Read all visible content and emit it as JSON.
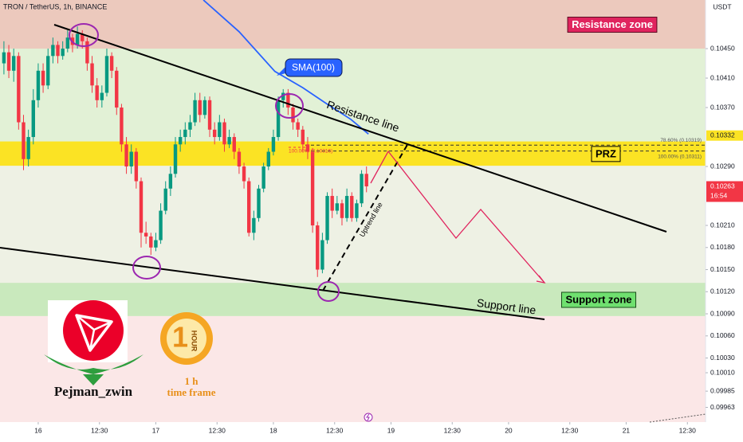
{
  "chart_data": {
    "type": "candlestick",
    "title": "TRON / TetherUS, 1h, BINANCE",
    "y_unit": "USDT",
    "xlim": [
      -7.8,
      136.2
    ],
    "xticks": [
      {
        "value": 0,
        "label": "16"
      },
      {
        "value": 12.5,
        "label": "12:30"
      },
      {
        "value": 24,
        "label": "17"
      },
      {
        "value": 36.5,
        "label": "12:30"
      },
      {
        "value": 48,
        "label": "18"
      },
      {
        "value": 60.5,
        "label": "12:30"
      },
      {
        "value": 72,
        "label": "19"
      },
      {
        "value": 84.5,
        "label": "12:30"
      },
      {
        "value": 96,
        "label": "20"
      },
      {
        "value": 108.5,
        "label": "12:30"
      },
      {
        "value": 120,
        "label": "21"
      },
      {
        "value": 132.5,
        "label": "12:30"
      }
    ],
    "ylim": [
      0.09943,
      0.10516
    ],
    "yticks": [
      {
        "value": 0.1045,
        "label": "0.10450"
      },
      {
        "value": 0.1041,
        "label": "0.10410"
      },
      {
        "value": 0.1037,
        "label": "0.10370"
      },
      {
        "value": 0.1029,
        "label": "0.10290"
      },
      {
        "value": 0.1021,
        "label": "0.10210"
      },
      {
        "value": 0.1018,
        "label": "0.10180"
      },
      {
        "value": 0.1015,
        "label": "0.10150"
      },
      {
        "value": 0.1012,
        "label": "0.10120"
      },
      {
        "value": 0.1009,
        "label": "0.10090"
      },
      {
        "value": 0.1006,
        "label": "0.10060"
      },
      {
        "value": 0.1003,
        "label": "0.10030"
      },
      {
        "value": 0.1001,
        "label": "0.10010"
      },
      0.09985,
      0.09963
    ],
    "series": [
      {
        "type": "candlestick",
        "up_color": "#089981",
        "down_color": "#f23645",
        "x": [
          -7,
          -6,
          -5,
          -4,
          -3,
          -2,
          -1,
          0,
          1,
          2,
          3,
          4,
          5,
          6,
          7,
          8,
          9,
          10,
          11,
          12,
          13,
          14,
          15,
          16,
          17,
          18,
          19,
          20,
          21,
          22,
          23,
          24,
          25,
          26,
          27,
          28,
          29,
          30,
          31,
          32,
          33,
          34,
          35,
          36,
          37,
          38,
          39,
          40,
          41,
          42,
          43,
          44,
          45,
          46,
          47,
          48,
          49,
          50,
          51,
          52,
          53,
          54,
          55,
          56,
          57,
          58,
          59,
          60,
          61,
          62,
          63,
          64,
          65,
          66,
          67
        ],
        "ohlc": [
          [
            0.1043,
            0.1046,
            0.10415,
            0.10445
          ],
          [
            0.10445,
            0.10455,
            0.1041,
            0.1042
          ],
          [
            0.1042,
            0.1045,
            0.10405,
            0.1044
          ],
          [
            0.1044,
            0.10445,
            0.1034,
            0.1035
          ],
          [
            0.1035,
            0.1036,
            0.10285,
            0.103
          ],
          [
            0.103,
            0.1034,
            0.1029,
            0.1033
          ],
          [
            0.1033,
            0.10395,
            0.1032,
            0.1038
          ],
          [
            0.1038,
            0.1043,
            0.1037,
            0.1042
          ],
          [
            0.1042,
            0.1043,
            0.1039,
            0.104
          ],
          [
            0.104,
            0.1045,
            0.10395,
            0.1044
          ],
          [
            0.1044,
            0.10465,
            0.1043,
            0.10455
          ],
          [
            0.10455,
            0.1046,
            0.1043,
            0.1044
          ],
          [
            0.1044,
            0.1046,
            0.10435,
            0.1045
          ],
          [
            0.1045,
            0.10475,
            0.10445,
            0.10465
          ],
          [
            0.10465,
            0.1047,
            0.10445,
            0.10455
          ],
          [
            0.10455,
            0.1048,
            0.1045,
            0.1047
          ],
          [
            0.1047,
            0.10475,
            0.1045,
            0.1046
          ],
          [
            0.1046,
            0.10465,
            0.1042,
            0.1043
          ],
          [
            0.1043,
            0.1044,
            0.1039,
            0.104
          ],
          [
            0.104,
            0.1041,
            0.1037,
            0.1038
          ],
          [
            0.1038,
            0.104,
            0.1037,
            0.1039
          ],
          [
            0.1039,
            0.1045,
            0.10385,
            0.1044
          ],
          [
            0.1044,
            0.10445,
            0.1041,
            0.1042
          ],
          [
            0.1042,
            0.10425,
            0.1036,
            0.1037
          ],
          [
            0.1037,
            0.10375,
            0.1031,
            0.1032
          ],
          [
            0.1032,
            0.1033,
            0.1028,
            0.1029
          ],
          [
            0.1029,
            0.1032,
            0.1028,
            0.1031
          ],
          [
            0.1031,
            0.10315,
            0.1026,
            0.1027
          ],
          [
            0.1027,
            0.10275,
            0.1018,
            0.102
          ],
          [
            0.102,
            0.10215,
            0.10185,
            0.10195
          ],
          [
            0.10195,
            0.102,
            0.1017,
            0.1018
          ],
          [
            0.1018,
            0.102,
            0.10175,
            0.1019
          ],
          [
            0.1019,
            0.1024,
            0.10185,
            0.1023
          ],
          [
            0.1023,
            0.1027,
            0.10225,
            0.1026
          ],
          [
            0.1026,
            0.1029,
            0.1025,
            0.1028
          ],
          [
            0.1028,
            0.1033,
            0.10275,
            0.1032
          ],
          [
            0.1032,
            0.1034,
            0.1031,
            0.1033
          ],
          [
            0.1033,
            0.1035,
            0.1032,
            0.1034
          ],
          [
            0.1034,
            0.1036,
            0.1033,
            0.1035
          ],
          [
            0.1035,
            0.1039,
            0.10345,
            0.1038
          ],
          [
            0.1038,
            0.1039,
            0.1035,
            0.1036
          ],
          [
            0.1036,
            0.10385,
            0.10355,
            0.1038
          ],
          [
            0.1038,
            0.10385,
            0.1033,
            0.1034
          ],
          [
            0.1034,
            0.1035,
            0.1032,
            0.1033
          ],
          [
            0.1033,
            0.1036,
            0.10325,
            0.1035
          ],
          [
            0.1035,
            0.10355,
            0.1031,
            0.1032
          ],
          [
            0.1032,
            0.1034,
            0.10315,
            0.1033
          ],
          [
            0.1033,
            0.10335,
            0.103,
            0.1031
          ],
          [
            0.1031,
            0.10315,
            0.1028,
            0.1029
          ],
          [
            0.1029,
            0.10295,
            0.1026,
            0.1027
          ],
          [
            0.1027,
            0.10275,
            0.10195,
            0.102
          ],
          [
            0.102,
            0.1023,
            0.1019,
            0.1022
          ],
          [
            0.1022,
            0.10265,
            0.10215,
            0.1026
          ],
          [
            0.1026,
            0.10295,
            0.10255,
            0.1029
          ],
          [
            0.1029,
            0.10315,
            0.10285,
            0.1031
          ],
          [
            0.1031,
            0.1034,
            0.10305,
            0.1033
          ],
          [
            0.1033,
            0.10385,
            0.10325,
            0.1038
          ],
          [
            0.1038,
            0.10395,
            0.1037,
            0.1039
          ],
          [
            0.1039,
            0.10395,
            0.1036,
            0.1037
          ],
          [
            0.1037,
            0.10375,
            0.1034,
            0.1035
          ],
          [
            0.1035,
            0.10355,
            0.1033,
            0.1034
          ],
          [
            0.1034,
            0.10345,
            0.1031,
            0.1032
          ],
          [
            0.1032,
            0.1033,
            0.103,
            0.1031
          ],
          [
            0.1031,
            0.10315,
            0.102,
            0.1021
          ],
          [
            0.1021,
            0.10215,
            0.1014,
            0.1015
          ],
          [
            0.1015,
            0.102,
            0.10145,
            0.1019
          ],
          [
            0.1019,
            0.10255,
            0.10185,
            0.1025
          ],
          [
            0.1025,
            0.1026,
            0.1022,
            0.1023
          ],
          [
            0.1023,
            0.1025,
            0.10225,
            0.1024
          ],
          [
            0.1024,
            0.10245,
            0.1021,
            0.1022
          ],
          [
            0.1022,
            0.1026,
            0.10215,
            0.1025
          ],
          [
            0.1025,
            0.10255,
            0.10215,
            0.1022
          ],
          [
            0.1022,
            0.10245,
            0.10215,
            0.1024
          ],
          [
            0.1024,
            0.10285,
            0.10235,
            0.1028
          ],
          [
            0.1028,
            0.1029,
            0.10255,
            0.10263
          ]
        ]
      },
      {
        "type": "line",
        "name": "SMA(100)",
        "color": "#2962ff",
        "x": [
          33.7,
          41,
          48.3,
          54,
          58.9,
          63.8,
          67.4
        ],
        "values": [
          0.10516,
          0.10473,
          0.10419,
          0.10397,
          0.10375,
          0.10354,
          0.10334
        ]
      }
    ],
    "zones": [
      {
        "label": "Resistance zone",
        "range": [
          0.1045,
          0.10516
        ],
        "color": "#ecc9bd"
      },
      {
        "label": "PRZ",
        "range": [
          0.10291,
          0.10324
        ],
        "color": "#fbe324"
      },
      {
        "label": "Support zone",
        "range": [
          0.10087,
          0.10132
        ],
        "color": "#c9e9bd"
      }
    ],
    "fib_levels": [
      {
        "label": "78.60% (0.10319)",
        "value": 0.10319
      },
      {
        "label": "100.00% (0.10311)",
        "value": 0.10311
      },
      {
        "label": "100.00% (0.10316)",
        "value": 0.10316
      }
    ],
    "price_labels": [
      {
        "value": 0.10332,
        "color": "#fbe324"
      },
      {
        "value": 0.10263,
        "time": "16:54",
        "color": "#f23645"
      }
    ],
    "annotations": {
      "resistance_line": "Resistance line",
      "support_line": "Support line",
      "uptrend_line": "Uptrend line"
    },
    "watermark": {
      "author": "Pejman_zwin",
      "clock_digit": "1",
      "clock": "HOUR",
      "timeframe": "1 h",
      "timeframe_label": "time frame"
    }
  }
}
